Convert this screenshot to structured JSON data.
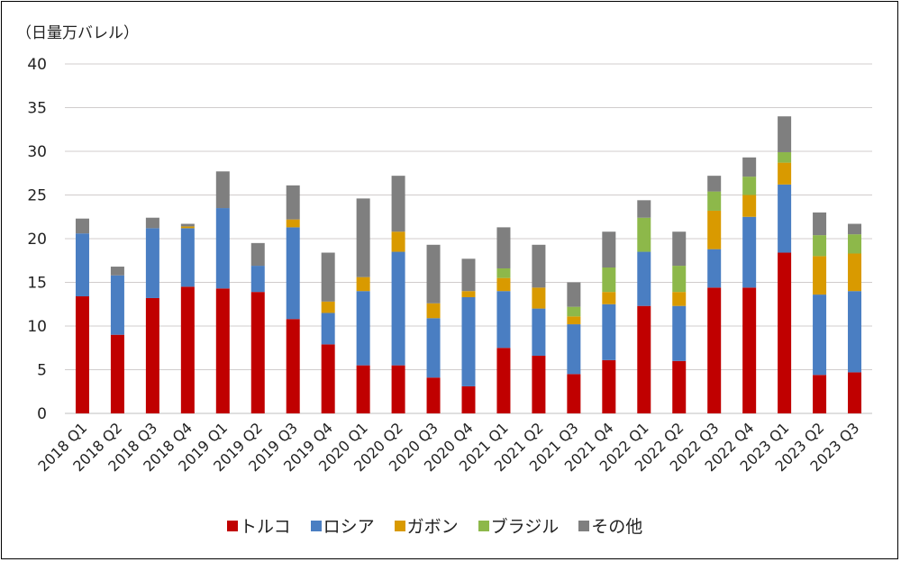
{
  "chart_data": {
    "type": "bar",
    "stacked": true,
    "title": "",
    "ylabel": "（日量万バレル）",
    "xlabel": "",
    "ylim": [
      0,
      40
    ],
    "yticks": [
      "0",
      "5",
      "10",
      "15",
      "20",
      "25",
      "30",
      "35",
      "40"
    ],
    "ytick_values": [
      0,
      5,
      10,
      15,
      20,
      25,
      30,
      35,
      40
    ],
    "grid": true,
    "legend_position": "bottom",
    "categories": [
      "2018 Q1",
      "2018 Q2",
      "2018 Q3",
      "2018 Q4",
      "2019 Q1",
      "2019 Q2",
      "2019 Q3",
      "2019 Q4",
      "2020 Q1",
      "2020 Q2",
      "2020 Q3",
      "2020 Q4",
      "2021 Q1",
      "2021 Q2",
      "2021 Q3",
      "2021 Q4",
      "2022 Q1",
      "2022 Q2",
      "2022 Q3",
      "2022 Q4",
      "2023 Q1",
      "2023 Q2",
      "2023 Q3"
    ],
    "series": [
      {
        "name": "トルコ",
        "color": "#c00000",
        "values": [
          13.4,
          9.0,
          13.2,
          14.5,
          14.3,
          13.9,
          10.8,
          7.9,
          5.5,
          5.5,
          4.1,
          3.1,
          7.5,
          6.6,
          4.5,
          6.1,
          12.3,
          6.0,
          14.4,
          14.4,
          18.4,
          4.4,
          4.7
        ]
      },
      {
        "name": "ロシア",
        "color": "#4a7ec2",
        "values": [
          7.2,
          6.8,
          8.0,
          6.7,
          9.2,
          3.0,
          10.5,
          3.6,
          8.5,
          13.0,
          6.8,
          10.2,
          6.5,
          5.4,
          5.7,
          6.4,
          6.2,
          6.3,
          4.4,
          8.1,
          7.8,
          9.2,
          9.3
        ]
      },
      {
        "name": "ガボン",
        "color": "#d99a00",
        "values": [
          0,
          0,
          0,
          0.2,
          0,
          0,
          0.9,
          1.3,
          1.6,
          2.3,
          1.7,
          0.7,
          1.5,
          2.4,
          0.9,
          1.4,
          0,
          1.6,
          4.4,
          2.5,
          2.5,
          4.4,
          4.3
        ]
      },
      {
        "name": "ブラジル",
        "color": "#8db84a",
        "values": [
          0,
          0,
          0,
          0,
          0,
          0,
          0,
          0,
          0,
          0,
          0,
          0,
          1.1,
          0,
          1.1,
          2.8,
          3.9,
          3.0,
          2.2,
          2.1,
          1.2,
          2.4,
          2.2
        ]
      },
      {
        "name": "その他",
        "color": "#7f7f7f",
        "values": [
          1.7,
          1.0,
          1.2,
          0.3,
          4.2,
          2.6,
          3.9,
          5.6,
          9.0,
          6.4,
          6.7,
          3.7,
          4.7,
          4.9,
          2.8,
          4.1,
          2.0,
          3.9,
          1.8,
          2.2,
          4.1,
          2.6,
          1.2
        ]
      }
    ]
  }
}
